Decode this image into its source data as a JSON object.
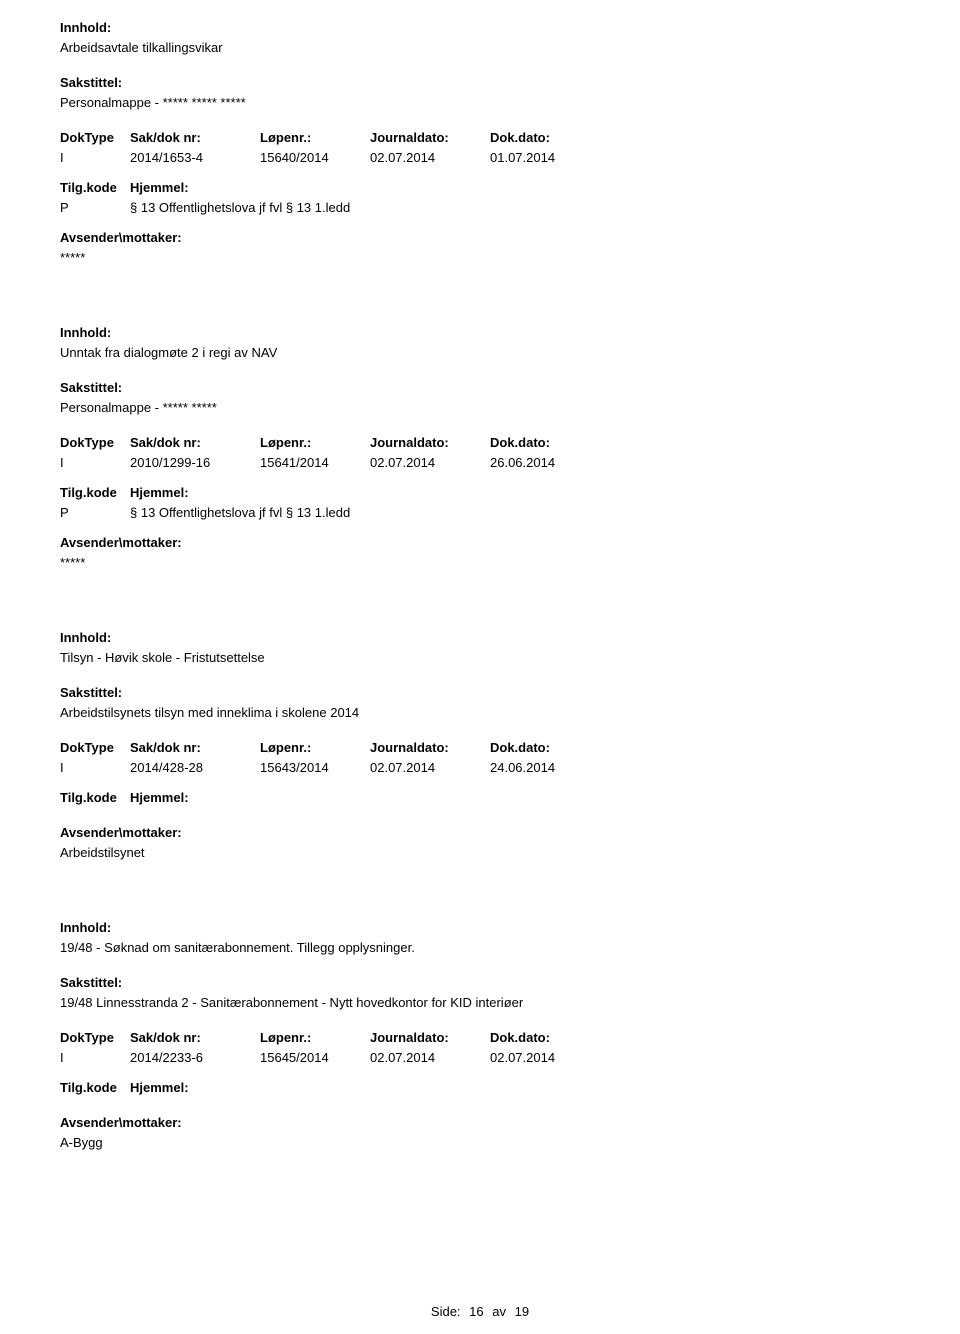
{
  "labels": {
    "innhold": "Innhold:",
    "sakstittel": "Sakstittel:",
    "doktype": "DokType",
    "saknr": "Sak/dok nr:",
    "lopenr": "Løpenr.:",
    "journaldato": "Journaldato:",
    "dokdato": "Dok.dato:",
    "tilgkode": "Tilg.kode",
    "hjemmel": "Hjemmel:",
    "avsender": "Avsender\\mottaker:"
  },
  "records": [
    {
      "content": "Arbeidsavtale tilkallingsvikar",
      "sakstittel": "Personalmappe - ***** ***** *****",
      "doktype": "I",
      "saknr": "2014/1653-4",
      "lopenr": "15640/2014",
      "journaldato": "02.07.2014",
      "dokdato": "01.07.2014",
      "tilgkode": "P",
      "hjemmel": "§ 13 Offentlighetslova jf fvl § 13 1.ledd",
      "avsender": "*****"
    },
    {
      "content": "Unntak fra dialogmøte 2 i regi av NAV",
      "sakstittel": "Personalmappe - *****  *****",
      "doktype": "I",
      "saknr": "2010/1299-16",
      "lopenr": "15641/2014",
      "journaldato": "02.07.2014",
      "dokdato": "26.06.2014",
      "tilgkode": "P",
      "hjemmel": "§ 13 Offentlighetslova jf fvl § 13 1.ledd",
      "avsender": "*****"
    },
    {
      "content": "Tilsyn - Høvik skole - Fristutsettelse",
      "sakstittel": "Arbeidstilsynets tilsyn med inneklima i skolene 2014",
      "doktype": "I",
      "saknr": "2014/428-28",
      "lopenr": "15643/2014",
      "journaldato": "02.07.2014",
      "dokdato": "24.06.2014",
      "tilgkode": "",
      "hjemmel": "",
      "avsender": "Arbeidstilsynet"
    },
    {
      "content": "19/48 - Søknad om sanitærabonnement. Tillegg opplysninger.",
      "sakstittel": "19/48 Linnesstranda 2 - Sanitærabonnement - Nytt hovedkontor for KID interiøer",
      "doktype": "I",
      "saknr": "2014/2233-6",
      "lopenr": "15645/2014",
      "journaldato": "02.07.2014",
      "dokdato": "02.07.2014",
      "tilgkode": "",
      "hjemmel": "",
      "avsender": "A-Bygg"
    }
  ],
  "footer": {
    "side_label": "Side:",
    "page_current": "16",
    "av_label": "av",
    "page_total": "19"
  }
}
